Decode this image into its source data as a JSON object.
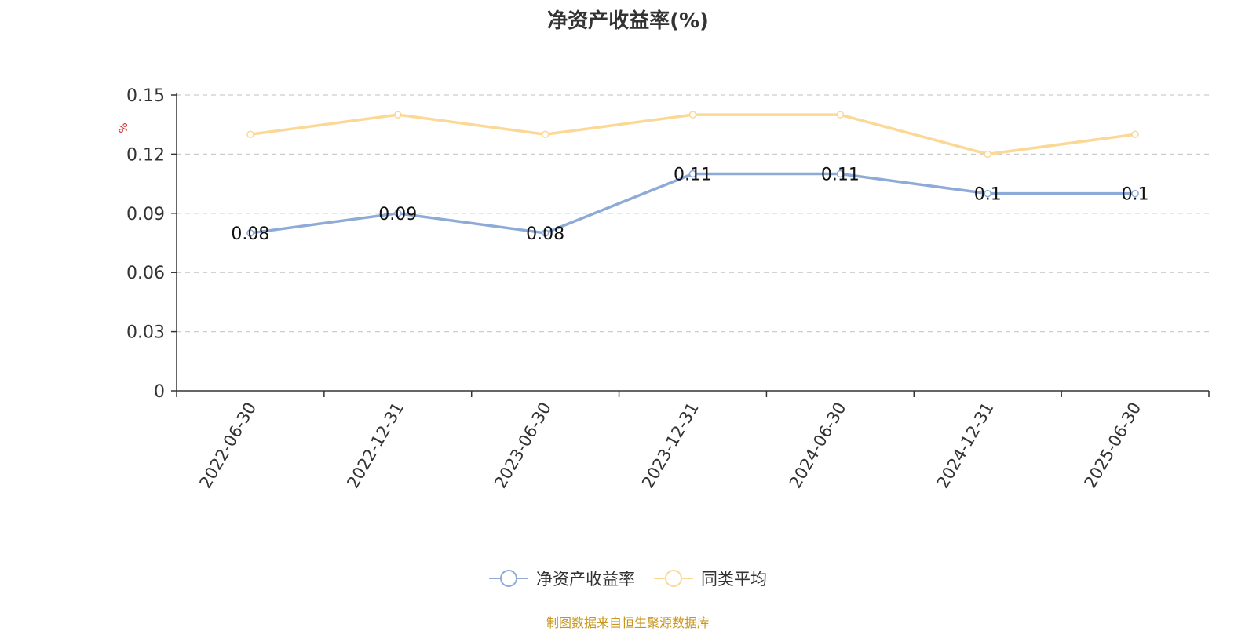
{
  "chart_data": {
    "type": "line",
    "title": "净资产收益率(%)",
    "ylabel": "%",
    "categories": [
      "2022-06-30",
      "2022-12-31",
      "2023-06-30",
      "2023-12-31",
      "2024-06-30",
      "2024-12-31",
      "2025-06-30"
    ],
    "series": [
      {
        "name": "净资产收益率",
        "values": [
          0.08,
          0.09,
          0.08,
          0.11,
          0.11,
          0.1,
          0.1
        ],
        "color": "#8eaad6",
        "data_labels": true
      },
      {
        "name": "同类平均",
        "values": [
          0.13,
          0.14,
          0.13,
          0.14,
          0.14,
          0.12,
          0.13
        ],
        "color": "#fcd896",
        "data_labels": false
      }
    ],
    "ylim": [
      0,
      0.15
    ],
    "yticks": [
      "0",
      "0.03",
      "0.06",
      "0.09",
      "0.12",
      "0.15"
    ],
    "grid": true,
    "legend_position": "bottom-center"
  },
  "source_note": "制图数据来自恒生聚源数据库"
}
